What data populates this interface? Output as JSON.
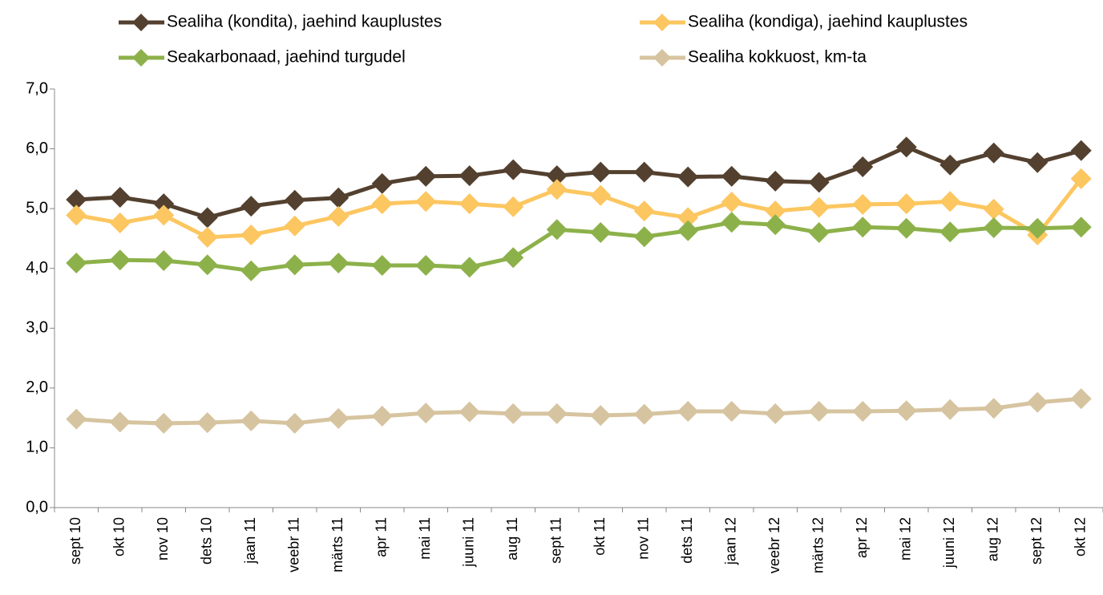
{
  "chart_data": {
    "type": "line",
    "categories": [
      "sept 10",
      "okt 10",
      "nov 10",
      "dets 10",
      "jaan 11",
      "veebr 11",
      "märts 11",
      "apr 11",
      "mai 11",
      "juuni 11",
      "aug 11",
      "sept 11",
      "okt 11",
      "nov 11",
      "dets 11",
      "jaan 12",
      "veebr 12",
      "märts 12",
      "apr 12",
      "mai 12",
      "juuni 12",
      "aug 12",
      "sept 12",
      "okt 12"
    ],
    "series": [
      {
        "name": "Sealiha (kondita), jaehind kauplustes",
        "color": "#53402f",
        "values": [
          5.15,
          5.19,
          5.08,
          4.85,
          5.04,
          5.14,
          5.18,
          5.42,
          5.54,
          5.55,
          5.65,
          5.55,
          5.61,
          5.61,
          5.53,
          5.54,
          5.46,
          5.44,
          5.7,
          6.03,
          5.73,
          5.93,
          5.77,
          5.97
        ]
      },
      {
        "name": "Sealiha (kondiga), jaehind kauplustes",
        "color": "#fcc660",
        "values": [
          4.89,
          4.76,
          4.89,
          4.52,
          4.56,
          4.71,
          4.87,
          5.08,
          5.12,
          5.08,
          5.03,
          5.32,
          5.22,
          4.96,
          4.85,
          5.11,
          4.96,
          5.02,
          5.07,
          5.08,
          5.12,
          4.99,
          4.56,
          5.5
        ]
      },
      {
        "name": "Seakarbonaad, jaehind turgudel",
        "color": "#8db14a",
        "values": [
          4.09,
          4.14,
          4.13,
          4.06,
          3.96,
          4.06,
          4.09,
          4.05,
          4.05,
          4.02,
          4.18,
          4.65,
          4.6,
          4.53,
          4.63,
          4.77,
          4.73,
          4.6,
          4.69,
          4.67,
          4.61,
          4.68,
          4.67,
          4.69
        ]
      },
      {
        "name": "Sealiha kokkuost, km-ta",
        "color": "#d6c4a0",
        "values": [
          1.48,
          1.43,
          1.41,
          1.42,
          1.45,
          1.41,
          1.49,
          1.53,
          1.58,
          1.6,
          1.57,
          1.57,
          1.54,
          1.56,
          1.61,
          1.61,
          1.57,
          1.61,
          1.61,
          1.62,
          1.64,
          1.66,
          1.76,
          1.82
        ]
      }
    ],
    "ylim": [
      0,
      7
    ],
    "yticks": [
      {
        "value": 0,
        "label": "0,0"
      },
      {
        "value": 1,
        "label": "1,0"
      },
      {
        "value": 2,
        "label": "2,0"
      },
      {
        "value": 3,
        "label": "3,0"
      },
      {
        "value": 4,
        "label": "4,0"
      },
      {
        "value": 5,
        "label": "5,0"
      },
      {
        "value": 6,
        "label": "6,0"
      },
      {
        "value": 7,
        "label": "7,0"
      }
    ],
    "grid": false,
    "legend": "top"
  }
}
